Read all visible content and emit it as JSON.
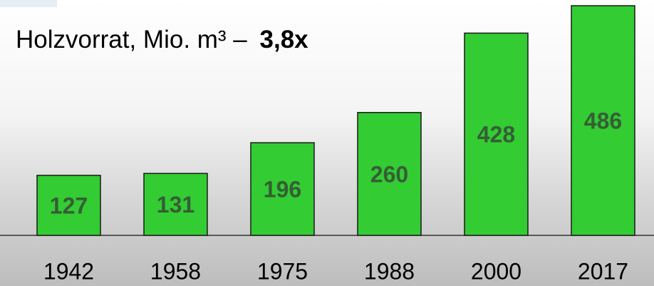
{
  "chart_data": {
    "type": "bar",
    "title": "Holzvorrat, Mio. m³ –",
    "annotation": "3,8x",
    "categories": [
      "1942",
      "1958",
      "1975",
      "1988",
      "2000",
      "2017"
    ],
    "values": [
      127,
      131,
      196,
      260,
      428,
      486
    ],
    "color": "#33cc33"
  }
}
